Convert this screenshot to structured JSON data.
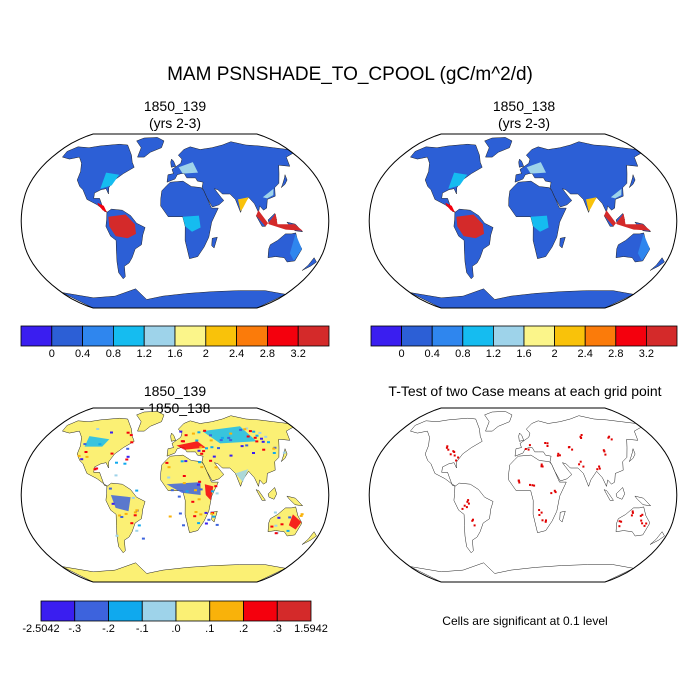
{
  "title": "MAM PSNSHADE_TO_CPOOL (gC/m^2/d)",
  "panels": [
    {
      "id": "case1",
      "title_line1": "1850_139",
      "title_line2": "(yrs 2-3)"
    },
    {
      "id": "case2",
      "title_line1": "1850_138",
      "title_line2": "(yrs 2-3)"
    },
    {
      "id": "diff",
      "title_line1": "1850_139",
      "title_line2": "- 1850_138"
    },
    {
      "id": "ttest",
      "title_line1": "T-Test of two Case means at each grid point",
      "title_line2": ""
    }
  ],
  "colorbar_main": {
    "colors": [
      "#3a1ef0",
      "#2c5fd6",
      "#2f86ee",
      "#15bcf0",
      "#9ed3ea",
      "#fbf58a",
      "#f9c20a",
      "#fb7b0a",
      "#f4000d",
      "#d42a2a"
    ],
    "labels": [
      "0",
      "0.4",
      "0.8",
      "1.2",
      "1.6",
      "2",
      "2.4",
      "2.8",
      "3.2"
    ]
  },
  "colorbar_diff": {
    "colors": [
      "#3a1ef0",
      "#3d63dd",
      "#0fa9ee",
      "#9ed3ea",
      "#fbf074",
      "#f9b20a",
      "#f4000d",
      "#d42a2a"
    ],
    "labels": [
      "-2.5042",
      "-.3",
      "-.2",
      "-.1",
      ".0",
      ".1",
      ".2",
      ".3",
      "1.5942"
    ]
  },
  "note": "Cells are significant at 0.1 level"
}
